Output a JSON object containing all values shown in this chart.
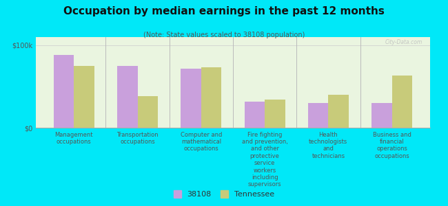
{
  "title": "Occupation by median earnings in the past 12 months",
  "subtitle": "(Note: State values scaled to 38108 population)",
  "background_color": "#00e8f8",
  "plot_bg_color": "#eaf5e0",
  "categories": [
    "Management\noccupations",
    "Transportation\noccupations",
    "Computer and\nmathematical\noccupations",
    "Fire fighting\nand prevention,\nand other\nprotective\nservice\nworkers\nincluding\nsupervisors",
    "Health\ntechnologists\nand\ntechnicians",
    "Business and\nfinancial\noperations\noccupations"
  ],
  "values_38108": [
    88000,
    75000,
    72000,
    32000,
    30000,
    30000
  ],
  "values_tennessee": [
    75000,
    38000,
    73000,
    34000,
    40000,
    63000
  ],
  "color_38108": "#c9a0dc",
  "color_tennessee": "#c8cb7a",
  "ylim": [
    0,
    110000
  ],
  "ytick_labels": [
    "$0",
    "$100k"
  ],
  "ytick_vals": [
    0,
    100000
  ],
  "legend_labels": [
    "38108",
    "Tennessee"
  ],
  "watermark": "City-Data.com",
  "bar_width": 0.32
}
